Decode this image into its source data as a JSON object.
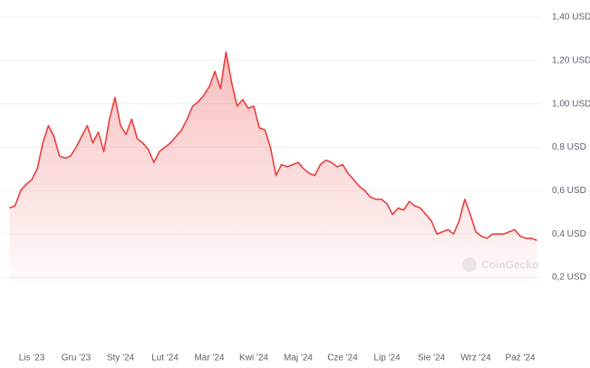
{
  "chart_data": {
    "type": "line",
    "categories": [
      null,
      null,
      null,
      null,
      "Lis '23",
      null,
      null,
      null,
      null,
      null,
      null,
      null,
      "Gru '23",
      null,
      null,
      null,
      null,
      null,
      null,
      null,
      "Sty '24",
      null,
      null,
      null,
      null,
      null,
      null,
      null,
      "Lut '24",
      null,
      null,
      null,
      null,
      null,
      null,
      null,
      "Mar '24",
      null,
      null,
      null,
      null,
      null,
      null,
      null,
      "Kwi '24",
      null,
      null,
      null,
      null,
      null,
      null,
      null,
      "Maj '24",
      null,
      null,
      null,
      null,
      null,
      null,
      null,
      "Cze '24",
      null,
      null,
      null,
      null,
      null,
      null,
      null,
      "Lip '24",
      null,
      null,
      null,
      null,
      null,
      null,
      null,
      "Sie '24",
      null,
      null,
      null,
      null,
      null,
      null,
      null,
      "Wrz '24",
      null,
      null,
      null,
      null,
      null,
      null,
      null,
      "Paź '24",
      null,
      null,
      null
    ],
    "series": [
      {
        "color": "#e8403e",
        "values": [
          0.52,
          0.53,
          0.6,
          0.63,
          0.65,
          0.7,
          0.82,
          0.9,
          0.85,
          0.76,
          0.75,
          0.76,
          0.8,
          0.85,
          0.9,
          0.82,
          0.87,
          0.78,
          0.93,
          1.03,
          0.9,
          0.86,
          0.93,
          0.84,
          0.82,
          0.79,
          0.73,
          0.78,
          0.8,
          0.82,
          0.85,
          0.88,
          0.93,
          0.99,
          1.01,
          1.04,
          1.08,
          1.15,
          1.07,
          1.24,
          1.1,
          0.99,
          1.02,
          0.98,
          0.99,
          0.89,
          0.88,
          0.8,
          0.67,
          0.72,
          0.71,
          0.72,
          0.73,
          0.7,
          0.68,
          0.67,
          0.72,
          0.74,
          0.73,
          0.71,
          0.72,
          0.68,
          0.65,
          0.62,
          0.6,
          0.57,
          0.56,
          0.56,
          0.54,
          0.49,
          0.52,
          0.51,
          0.55,
          0.53,
          0.52,
          0.49,
          0.46,
          0.4,
          0.41,
          0.42,
          0.4,
          0.46,
          0.56,
          0.49,
          0.41,
          0.39,
          0.38,
          0.4,
          0.4,
          0.4,
          0.41,
          0.42,
          0.39,
          0.38,
          0.38,
          0.37
        ]
      }
    ],
    "ylim": [
      0.2,
      1.4
    ],
    "yticks": [
      {
        "value": 0.2,
        "label": "0,2 USD"
      },
      {
        "value": 0.4,
        "label": "0,4 USD"
      },
      {
        "value": 0.6,
        "label": "0,6 USD"
      },
      {
        "value": 0.8,
        "label": "0,8 USD"
      },
      {
        "value": 1.0,
        "label": "1,00 USD"
      },
      {
        "value": 1.2,
        "label": "1,20 USD"
      },
      {
        "value": 1.4,
        "label": "1,40 USD"
      }
    ],
    "grid": true,
    "watermark": "CoinGecko"
  }
}
